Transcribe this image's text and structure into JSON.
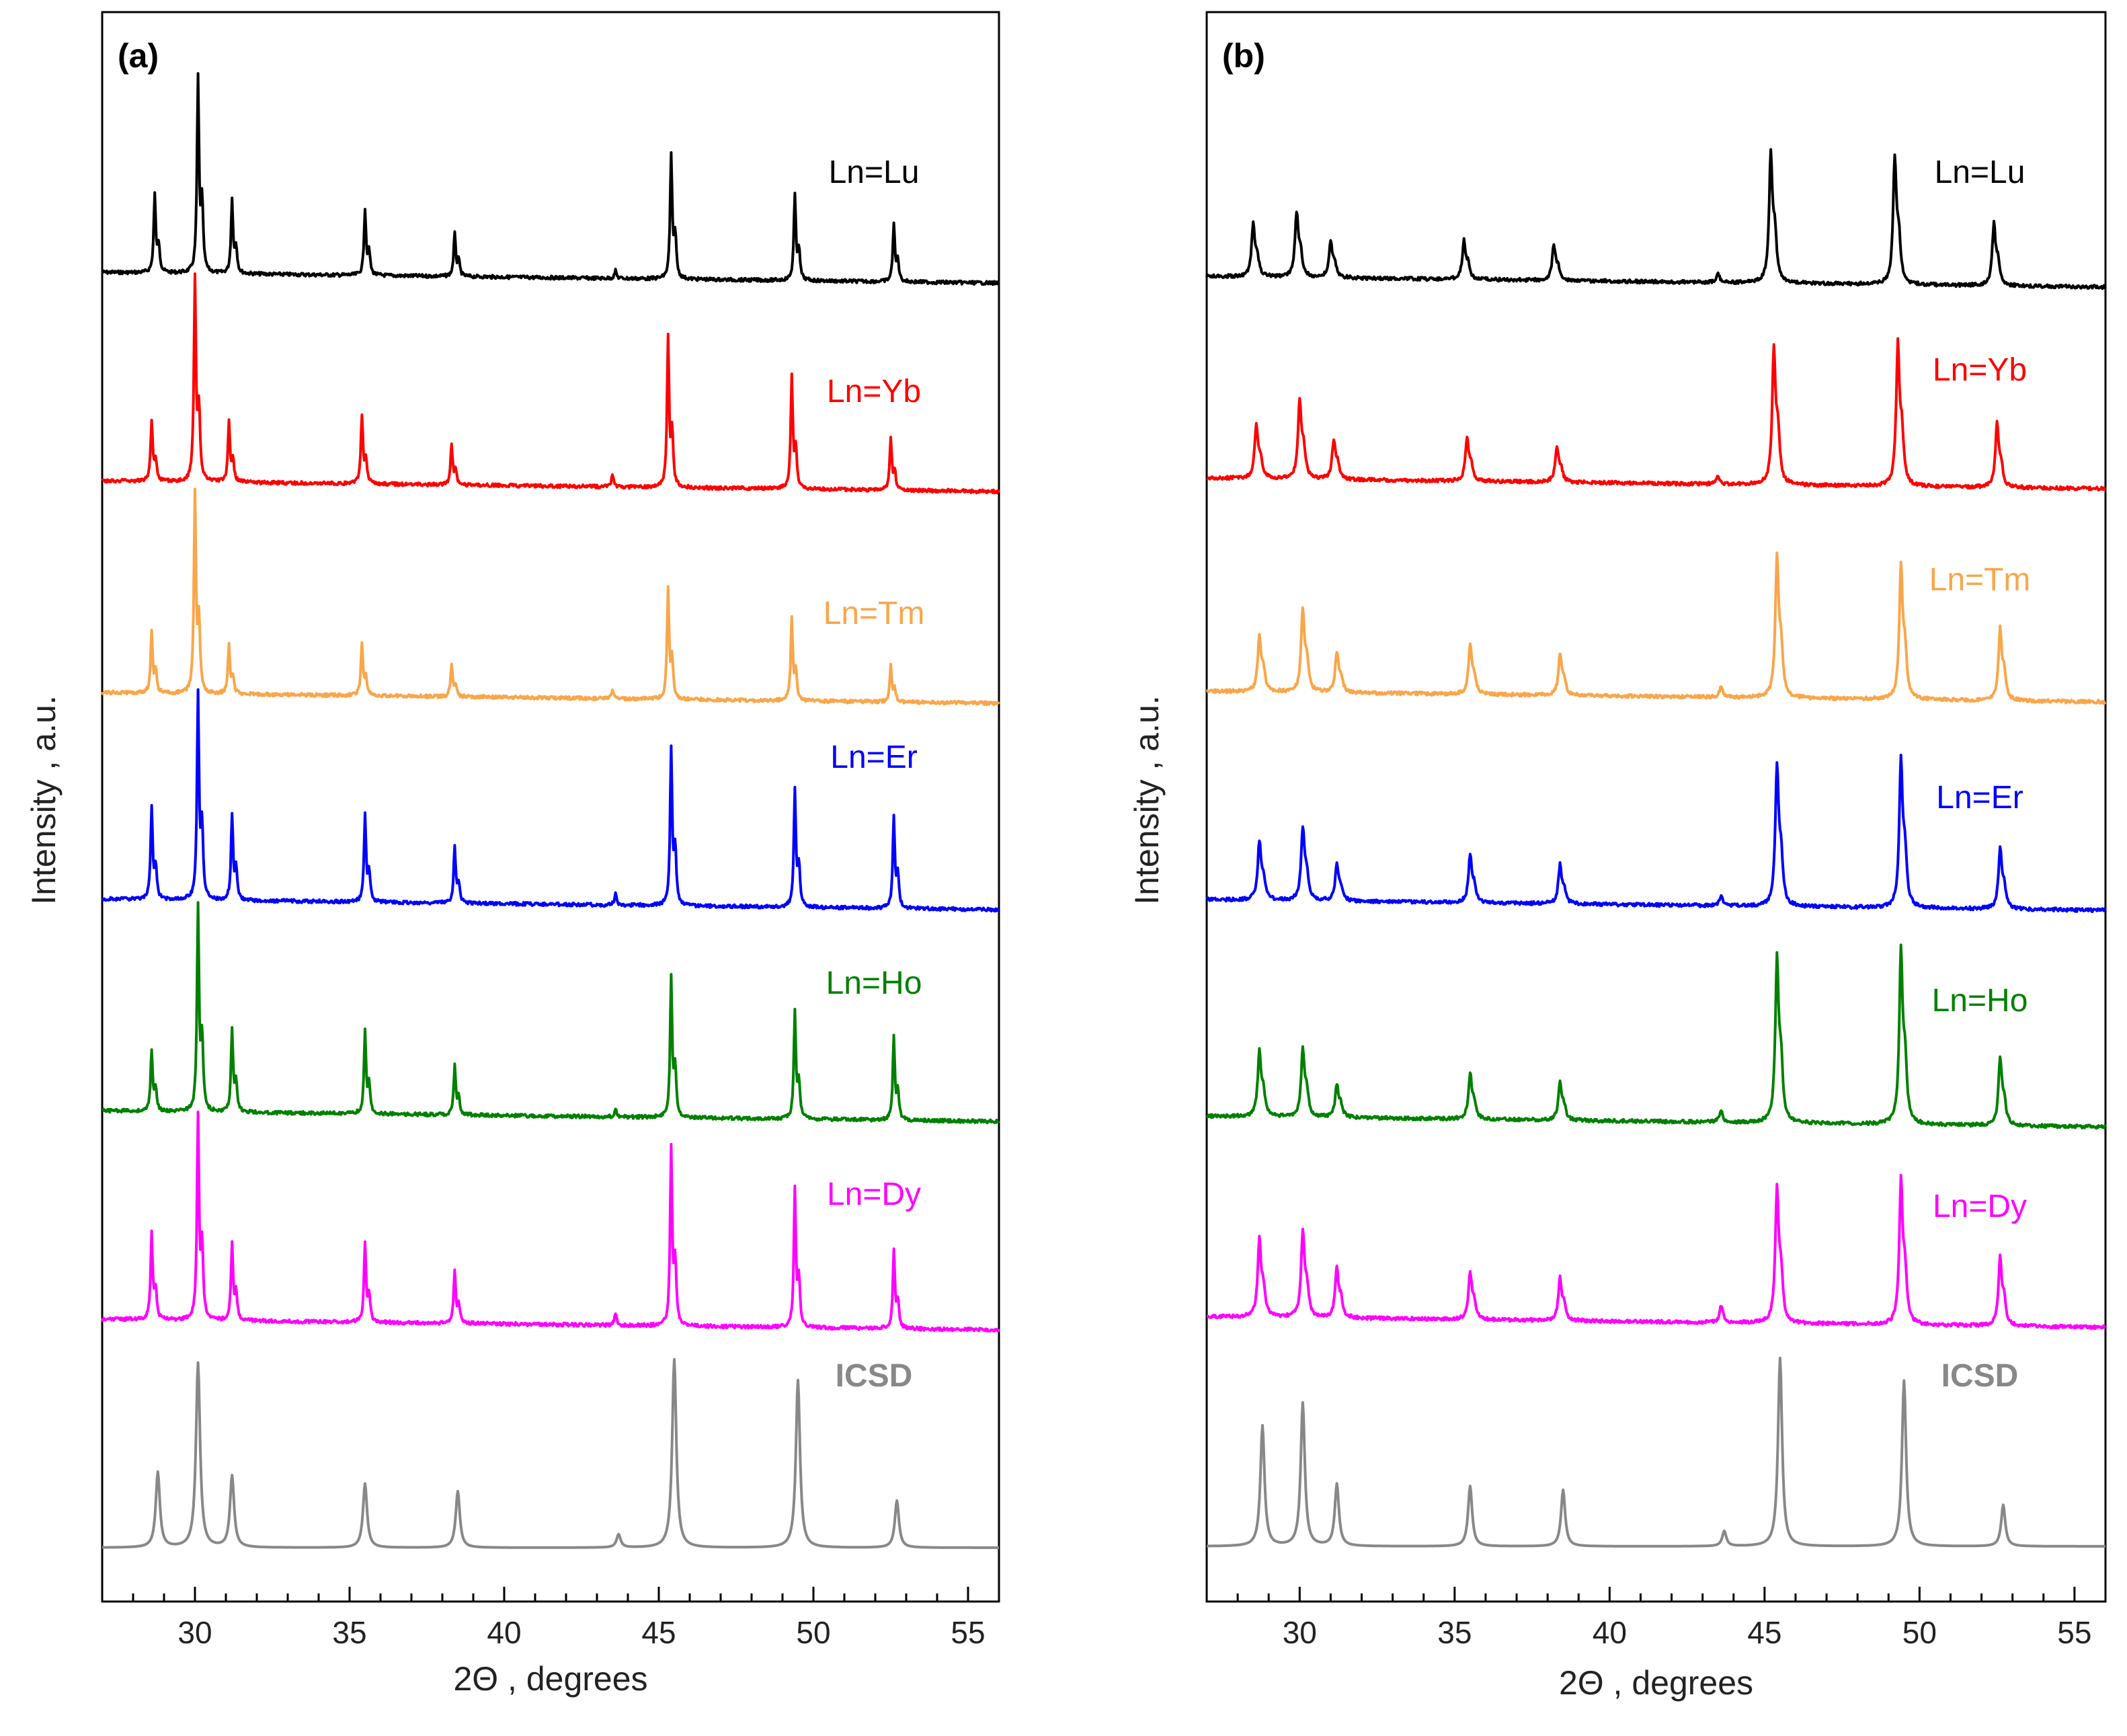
{
  "chart_data": [
    {
      "type": "line",
      "panel_label": "(a)",
      "xlabel": "2Θ , degrees",
      "ylabel": "Intensity , a.u.",
      "xlim": [
        27,
        56
      ],
      "x_ticks": [
        30,
        35,
        40,
        45,
        50,
        55
      ],
      "series": [
        {
          "name": "Ln=Lu",
          "color": "#000000",
          "peaks": [
            [
              28.7,
              0.4
            ],
            [
              30.1,
              1.0
            ],
            [
              31.2,
              0.38
            ],
            [
              35.5,
              0.34
            ],
            [
              38.4,
              0.22
            ],
            [
              43.6,
              0.04
            ],
            [
              45.4,
              0.64
            ],
            [
              49.4,
              0.44
            ],
            [
              52.6,
              0.3
            ]
          ]
        },
        {
          "name": "Ln=Yb",
          "color": "#ff0000",
          "peaks": [
            [
              28.6,
              0.3
            ],
            [
              30.0,
              1.0
            ],
            [
              31.1,
              0.3
            ],
            [
              35.4,
              0.34
            ],
            [
              38.3,
              0.2
            ],
            [
              43.5,
              0.06
            ],
            [
              45.3,
              0.74
            ],
            [
              49.3,
              0.56
            ],
            [
              52.5,
              0.26
            ]
          ]
        },
        {
          "name": "Ln=Tm",
          "color": "#f9a64a",
          "peaks": [
            [
              28.6,
              0.3
            ],
            [
              30.0,
              1.0
            ],
            [
              31.1,
              0.24
            ],
            [
              35.4,
              0.26
            ],
            [
              38.3,
              0.16
            ],
            [
              43.5,
              0.04
            ],
            [
              45.3,
              0.55
            ],
            [
              49.3,
              0.41
            ],
            [
              52.5,
              0.18
            ]
          ]
        },
        {
          "name": "Ln=Er",
          "color": "#0000ff",
          "peaks": [
            [
              28.6,
              0.45
            ],
            [
              30.1,
              1.0
            ],
            [
              31.2,
              0.42
            ],
            [
              35.5,
              0.42
            ],
            [
              38.4,
              0.28
            ],
            [
              43.6,
              0.06
            ],
            [
              45.4,
              0.77
            ],
            [
              49.4,
              0.57
            ],
            [
              52.6,
              0.45
            ]
          ]
        },
        {
          "name": "Ln=Ho",
          "color": "#008000",
          "peaks": [
            [
              28.6,
              0.3
            ],
            [
              30.1,
              1.0
            ],
            [
              31.2,
              0.4
            ],
            [
              35.5,
              0.4
            ],
            [
              38.4,
              0.24
            ],
            [
              43.6,
              0.04
            ],
            [
              45.4,
              0.68
            ],
            [
              49.4,
              0.52
            ],
            [
              52.6,
              0.4
            ]
          ]
        },
        {
          "name": "Ln=Dy",
          "color": "#ff00ff",
          "peaks": [
            [
              28.6,
              0.42
            ],
            [
              30.1,
              1.0
            ],
            [
              31.2,
              0.38
            ],
            [
              35.5,
              0.38
            ],
            [
              38.4,
              0.26
            ],
            [
              43.6,
              0.06
            ],
            [
              45.4,
              0.87
            ],
            [
              49.4,
              0.67
            ],
            [
              52.6,
              0.38
            ]
          ]
        },
        {
          "name": "ICSD",
          "color": "#888888",
          "bold": true,
          "peaks": [
            [
              28.8,
              0.4
            ],
            [
              30.1,
              0.98
            ],
            [
              31.2,
              0.38
            ],
            [
              35.5,
              0.34
            ],
            [
              38.5,
              0.3
            ],
            [
              43.7,
              0.07
            ],
            [
              45.5,
              1.0
            ],
            [
              49.5,
              0.89
            ],
            [
              52.7,
              0.25
            ]
          ]
        }
      ]
    },
    {
      "type": "line",
      "panel_label": "(b)",
      "xlabel": "2Θ , degrees",
      "ylabel": "Intensity , a.u.",
      "xlim": [
        27,
        56
      ],
      "x_ticks": [
        30,
        35,
        40,
        45,
        50,
        55
      ],
      "series": [
        {
          "name": "Ln=Lu",
          "color": "#000000",
          "peaks": [
            [
              28.5,
              0.32
            ],
            [
              29.9,
              0.4
            ],
            [
              31.0,
              0.22
            ],
            [
              35.3,
              0.24
            ],
            [
              38.2,
              0.22
            ],
            [
              43.5,
              0.05
            ],
            [
              45.2,
              0.8
            ],
            [
              49.2,
              0.78
            ],
            [
              52.4,
              0.38
            ]
          ]
        },
        {
          "name": "Ln=Yb",
          "color": "#ff0000",
          "peaks": [
            [
              28.6,
              0.3
            ],
            [
              30.0,
              0.44
            ],
            [
              31.1,
              0.22
            ],
            [
              35.4,
              0.24
            ],
            [
              38.3,
              0.2
            ],
            [
              43.5,
              0.05
            ],
            [
              45.3,
              0.76
            ],
            [
              49.3,
              0.79
            ],
            [
              52.5,
              0.35
            ]
          ]
        },
        {
          "name": "Ln=Tm",
          "color": "#f9a64a",
          "peaks": [
            [
              28.7,
              0.3
            ],
            [
              30.1,
              0.45
            ],
            [
              31.2,
              0.22
            ],
            [
              35.5,
              0.27
            ],
            [
              38.4,
              0.22
            ],
            [
              43.6,
              0.06
            ],
            [
              45.4,
              0.77
            ],
            [
              49.4,
              0.73
            ],
            [
              52.6,
              0.39
            ]
          ]
        },
        {
          "name": "Ln=Er",
          "color": "#0000ff",
          "peaks": [
            [
              28.7,
              0.32
            ],
            [
              30.1,
              0.4
            ],
            [
              31.2,
              0.2
            ],
            [
              35.5,
              0.26
            ],
            [
              38.4,
              0.21
            ],
            [
              43.6,
              0.06
            ],
            [
              45.4,
              0.77
            ],
            [
              49.4,
              0.81
            ],
            [
              52.6,
              0.33
            ]
          ]
        },
        {
          "name": "Ln=Ho",
          "color": "#008000",
          "peaks": [
            [
              28.7,
              0.36
            ],
            [
              30.1,
              0.37
            ],
            [
              31.2,
              0.18
            ],
            [
              35.5,
              0.25
            ],
            [
              38.4,
              0.21
            ],
            [
              43.6,
              0.07
            ],
            [
              45.4,
              0.9
            ],
            [
              49.4,
              0.95
            ],
            [
              52.6,
              0.37
            ]
          ]
        },
        {
          "name": "Ln=Dy",
          "color": "#ff00ff",
          "peaks": [
            [
              28.7,
              0.42
            ],
            [
              30.1,
              0.47
            ],
            [
              31.2,
              0.27
            ],
            [
              35.5,
              0.26
            ],
            [
              38.4,
              0.23
            ],
            [
              43.6,
              0.1
            ],
            [
              45.4,
              0.74
            ],
            [
              49.4,
              0.79
            ],
            [
              52.6,
              0.37
            ]
          ]
        },
        {
          "name": "ICSD",
          "color": "#888888",
          "bold": true,
          "peaks": [
            [
              28.8,
              0.64
            ],
            [
              30.1,
              0.76
            ],
            [
              31.2,
              0.33
            ],
            [
              35.5,
              0.32
            ],
            [
              38.5,
              0.3
            ],
            [
              43.7,
              0.08
            ],
            [
              45.5,
              1.0
            ],
            [
              49.5,
              0.88
            ],
            [
              52.7,
              0.22
            ]
          ]
        }
      ]
    }
  ]
}
